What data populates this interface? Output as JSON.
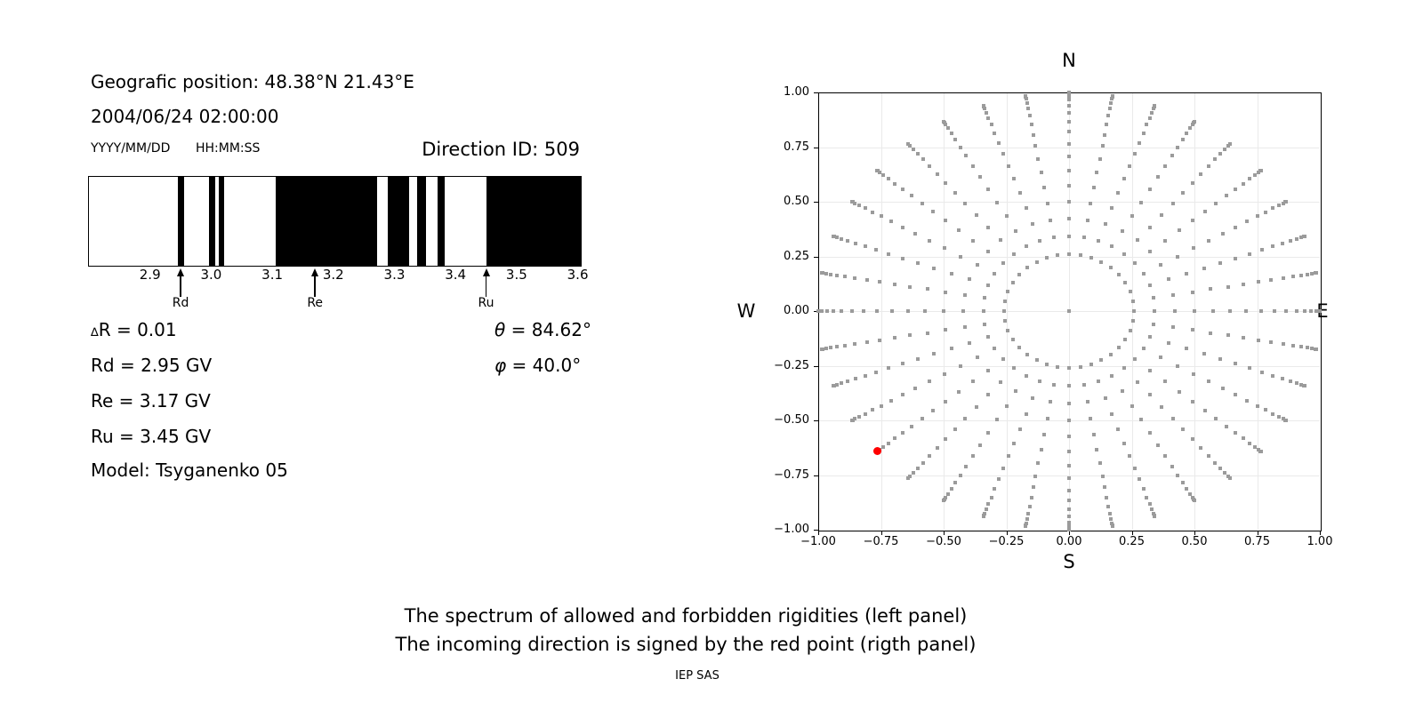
{
  "left_panel": {
    "position_line": "Geografic position: 48.38°N 21.43°E",
    "datetime_line": "2004/06/24 02:00:00",
    "date_fmt": "YYYY/MM/DD",
    "time_fmt": "HH:MM:SS",
    "direction_id": "Direction ID: 509",
    "values": {
      "delta_sym": "∆",
      "delta_rest": "R = 0.01",
      "rd_line": "Rd = 2.95 GV",
      "re_line": "Re = 3.17 GV",
      "ru_line": "Ru = 3.45 GV",
      "model_line": "Model: Tsyganenko 05",
      "theta_sym": "θ",
      "theta_rest": " = 84.62°",
      "phi_sym": "φ",
      "phi_rest": " = 40.0°"
    }
  },
  "caption": {
    "line1": "The spectrum of allowed and forbidden rigidities (left panel)",
    "line2": "The incoming direction is signed by the red point (rigth panel)",
    "credit": "IEP SAS"
  },
  "chart_data": [
    {
      "type": "spectrum-barcode",
      "description": "Spectrum of allowed (black) and forbidden (white) rigidities in GV",
      "x_range": [
        2.8,
        3.605
      ],
      "x_ticks": [
        {
          "v": 2.9,
          "label": "2.9"
        },
        {
          "v": 3.0,
          "label": "3.0"
        },
        {
          "v": 3.1,
          "label": "3.1"
        },
        {
          "v": 3.2,
          "label": "3.2"
        },
        {
          "v": 3.3,
          "label": "3.3"
        },
        {
          "v": 3.4,
          "label": "3.4"
        },
        {
          "v": 3.5,
          "label": "3.5"
        },
        {
          "v": 3.6,
          "label": "3.6"
        }
      ],
      "black_bands": [
        [
          2.946,
          2.956
        ],
        [
          2.997,
          3.007
        ],
        [
          3.013,
          3.022
        ],
        [
          3.106,
          3.272
        ],
        [
          3.289,
          3.324
        ],
        [
          3.337,
          3.352
        ],
        [
          3.371,
          3.383
        ],
        [
          3.45,
          3.605
        ]
      ],
      "cutoff_markers": [
        {
          "label": "Rd",
          "v": 2.95
        },
        {
          "label": "Re",
          "v": 3.17
        },
        {
          "label": "Ru",
          "v": 3.45
        }
      ],
      "band_color": "#000000",
      "background": "#ffffff"
    },
    {
      "type": "scatter",
      "description": "Incoming direction grid; radius = sin(zenith), azimuth clockwise from N; red point = incoming direction",
      "xlim": [
        -1,
        1
      ],
      "ylim": [
        -1,
        1
      ],
      "ticks": [
        {
          "v": -1.0,
          "label": "−1.00"
        },
        {
          "v": -0.75,
          "label": "−0.75"
        },
        {
          "v": -0.5,
          "label": "−0.50"
        },
        {
          "v": -0.25,
          "label": "−0.25"
        },
        {
          "v": 0.0,
          "label": "0.00"
        },
        {
          "v": 0.25,
          "label": "0.25"
        },
        {
          "v": 0.5,
          "label": "0.50"
        },
        {
          "v": 0.75,
          "label": "0.75"
        },
        {
          "v": 1.0,
          "label": "1.00"
        }
      ],
      "compass_labels": {
        "top": "N",
        "bottom": "S",
        "left": "W",
        "right": "E"
      },
      "grid": true,
      "grid_color": "#eaeaea",
      "dot_grid": {
        "azimuth_start_deg": 0,
        "azimuth_step_deg": 10,
        "azimuth_count": 36,
        "zenith_start_deg": 15,
        "zenith_step_deg": 5,
        "zenith_count": 16,
        "radius_rule": "sin(zenith_deg)",
        "center_dot": true,
        "dot_color": "#9b9b9b"
      },
      "red_point": {
        "azimuth_deg": 230,
        "zenith_deg": 84.62,
        "x": -0.763,
        "y": -0.64,
        "color": "#ff0000"
      }
    }
  ]
}
